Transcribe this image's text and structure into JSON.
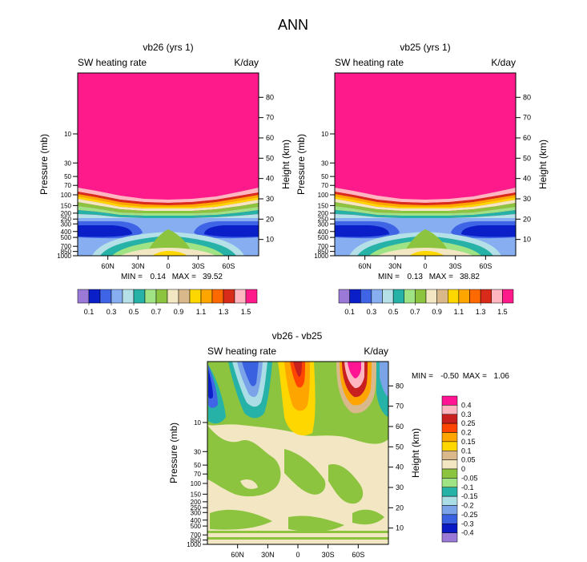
{
  "figure_title": "ANN",
  "chart_data": [
    {
      "type": "heatmap",
      "panel": "top-left",
      "title": "vb26 (yrs 1)",
      "left_label": "SW heating rate",
      "right_label": "K/day",
      "ylabel_left": "Pressure (mb)",
      "ylabel_right": "Height (km)",
      "x_ticks": [
        "60N",
        "30N",
        "0",
        "30S",
        "60S"
      ],
      "pressure_ticks": [
        "10",
        "30",
        "50",
        "70",
        "100",
        "150",
        "200",
        "250",
        "300",
        "400",
        "500",
        "700",
        "850",
        "1000"
      ],
      "height_ticks": [
        "80",
        "70",
        "60",
        "50",
        "40",
        "30",
        "20",
        "10"
      ],
      "min_label": "MIN =",
      "min_value": "0.14",
      "max_label": "MAX =",
      "max_value": "39.52",
      "colorbar_labels": [
        "0.1",
        "0.3",
        "0.5",
        "0.7",
        "0.9",
        "1.1",
        "1.3",
        "1.5"
      ]
    },
    {
      "type": "heatmap",
      "panel": "top-right",
      "title": "vb25 (yrs 1)",
      "left_label": "SW heating rate",
      "right_label": "K/day",
      "ylabel_left": "Pressure (mb)",
      "ylabel_right": "Height (km)",
      "x_ticks": [
        "60N",
        "30N",
        "0",
        "30S",
        "60S"
      ],
      "pressure_ticks": [
        "10",
        "30",
        "50",
        "70",
        "100",
        "150",
        "200",
        "250",
        "300",
        "400",
        "500",
        "700",
        "850",
        "1000"
      ],
      "height_ticks": [
        "80",
        "70",
        "60",
        "50",
        "40",
        "30",
        "20",
        "10"
      ],
      "min_label": "MIN =",
      "min_value": "0.13",
      "max_label": "MAX =",
      "max_value": "38.82",
      "colorbar_labels": [
        "0.1",
        "0.3",
        "0.5",
        "0.7",
        "0.9",
        "1.1",
        "1.3",
        "1.5"
      ]
    },
    {
      "type": "heatmap",
      "panel": "bottom",
      "title": "vb26 - vb25",
      "left_label": "SW heating rate",
      "right_label": "K/day",
      "ylabel_left": "Pressure (mb)",
      "ylabel_right": "Height (km)",
      "x_ticks": [
        "60N",
        "30N",
        "0",
        "30S",
        "60S"
      ],
      "pressure_ticks": [
        "10",
        "30",
        "50",
        "70",
        "100",
        "150",
        "200",
        "250",
        "300",
        "400",
        "500",
        "700",
        "850",
        "1000"
      ],
      "height_ticks": [
        "80",
        "70",
        "60",
        "50",
        "40",
        "30",
        "20",
        "10"
      ],
      "min_label": "MIN =",
      "min_value": "-0.50",
      "max_label": "MAX =",
      "max_value": "1.06",
      "colorbar_labels": [
        "0.4",
        "0.3",
        "0.25",
        "0.2",
        "0.15",
        "0.1",
        "0.05",
        "0",
        "-0.05",
        "-0.1",
        "-0.15",
        "-0.2",
        "-0.25",
        "-0.3",
        "-0.4"
      ]
    }
  ],
  "colors": {
    "seq": [
      "#9b79d6",
      "#0a1fc8",
      "#3f64e6",
      "#86aef0",
      "#b5e0e8",
      "#26b2a7",
      "#9fe384",
      "#8cc440",
      "#f3e7c3",
      "#d9b98b",
      "#ffd700",
      "#ffa500",
      "#ff6a00",
      "#d92b1a",
      "#ffb6c1",
      "#ff1a8c"
    ],
    "diff": [
      "#ff1493",
      "#ffb6c1",
      "#c8201e",
      "#ff4500",
      "#ffa500",
      "#ffd700",
      "#d9b98b",
      "#f3e7c3",
      "#8cc440",
      "#9fe384",
      "#26b2a7",
      "#aadde6",
      "#7ba3e8",
      "#3a62e0",
      "#0a1ac4",
      "#9b79d6"
    ]
  }
}
